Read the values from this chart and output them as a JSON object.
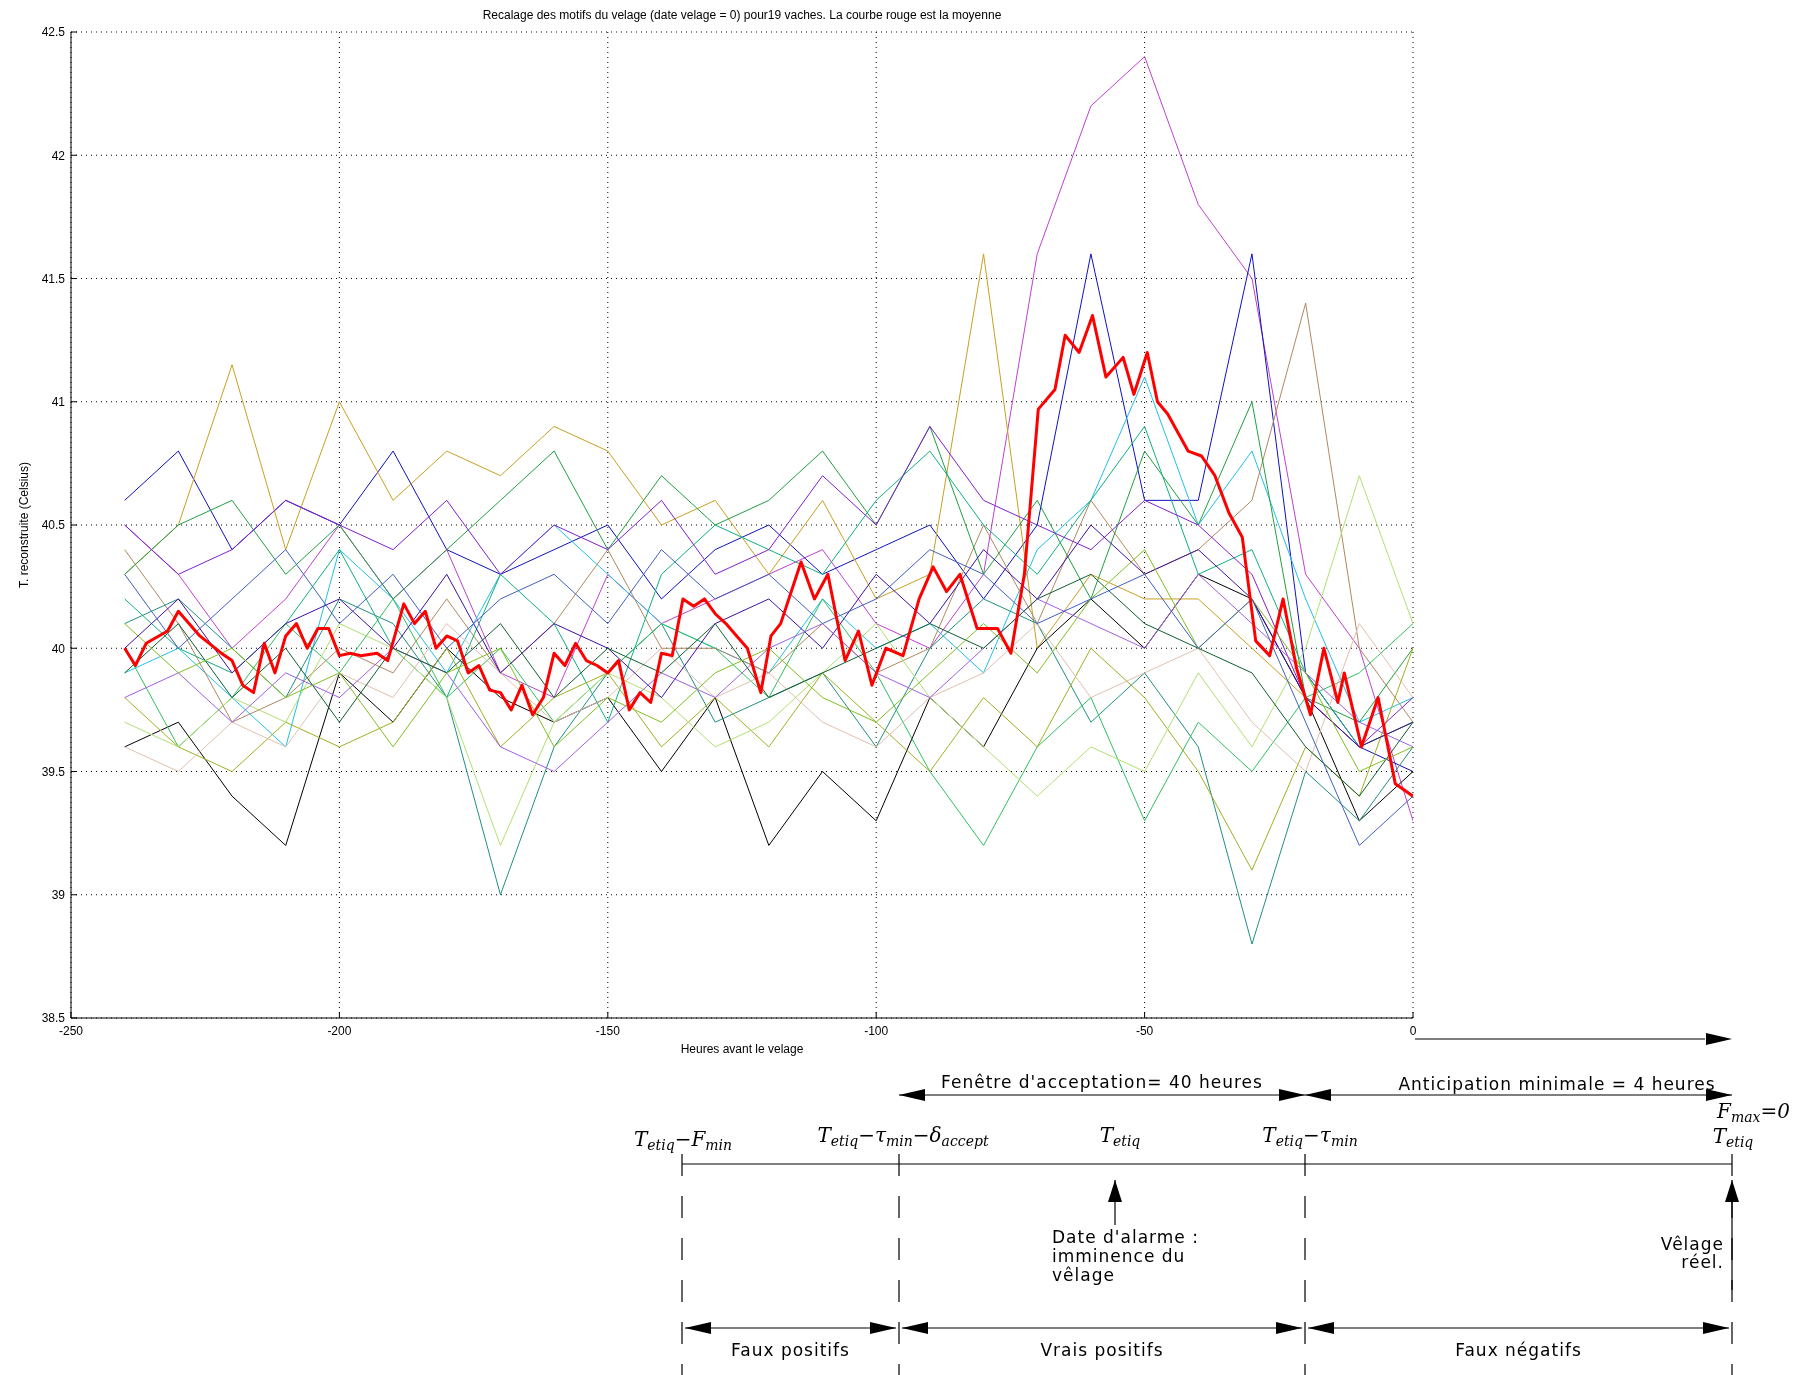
{
  "chart_data": {
    "type": "line",
    "title": "Recalage des motifs du velage (date velage = 0) pour19 vaches. La courbe rouge est la moyenne",
    "xlabel": "Heures avant le velage",
    "ylabel": "T. reconstruite (Celsius)",
    "xlim": [
      -250,
      0
    ],
    "xticks": [
      -250,
      -200,
      -150,
      -100,
      -50,
      0
    ],
    "ylim": [
      38.5,
      42.5
    ],
    "yticks": [
      38.5,
      39,
      39.5,
      40,
      40.5,
      41,
      41.5,
      42,
      42.5
    ],
    "grid": true,
    "marker": "none",
    "line_style": "solid",
    "x": [
      -240,
      -230,
      -220,
      -210,
      -200,
      -190,
      -180,
      -170,
      -160,
      -150,
      -140,
      -130,
      -120,
      -110,
      -100,
      -90,
      -80,
      -70,
      -60,
      -50,
      -40,
      -30,
      -20,
      -10,
      0
    ],
    "series": [
      {
        "color": "#c040d0",
        "values": [
          40.5,
          40.3,
          40.0,
          40.2,
          40.5,
          40.2,
          40.4,
          39.9,
          39.8,
          40.3,
          40.1,
          40.2,
          40.3,
          40.4,
          40.1,
          40.0,
          40.3,
          41.6,
          42.2,
          42.4,
          41.8,
          41.5,
          40.3,
          40.0,
          39.3
        ]
      },
      {
        "color": "#1010c0",
        "values": [
          40.6,
          40.8,
          40.4,
          40.6,
          40.5,
          40.8,
          40.4,
          40.3,
          40.4,
          40.5,
          40.2,
          40.4,
          40.5,
          40.3,
          40.4,
          40.5,
          40.2,
          40.5,
          41.6,
          40.6,
          40.6,
          41.6,
          39.9,
          39.6,
          39.5
        ]
      },
      {
        "color": "#c8a020",
        "values": [
          40.3,
          40.5,
          41.15,
          40.4,
          41.0,
          40.6,
          40.8,
          40.7,
          40.9,
          40.8,
          40.5,
          40.6,
          40.3,
          40.6,
          40.2,
          40.3,
          41.6,
          40.0,
          40.3,
          40.2,
          40.2,
          40.0,
          39.8,
          39.6,
          39.7
        ]
      },
      {
        "color": "#20c0e8",
        "values": [
          39.9,
          40.0,
          39.8,
          39.6,
          40.4,
          40.2,
          39.9,
          40.3,
          40.5,
          40.3,
          40.1,
          40.0,
          39.9,
          40.2,
          40.0,
          40.1,
          39.9,
          40.4,
          40.6,
          41.1,
          40.5,
          40.8,
          40.2,
          39.7,
          39.8
        ]
      },
      {
        "color": "#b08860",
        "values": [
          40.4,
          40.1,
          39.7,
          39.8,
          40.0,
          39.9,
          40.2,
          39.9,
          40.1,
          40.4,
          40.0,
          40.0,
          39.9,
          40.1,
          39.9,
          40.0,
          40.5,
          40.1,
          40.6,
          40.3,
          40.4,
          40.6,
          41.4,
          40.0,
          39.7
        ]
      },
      {
        "color": "#000000",
        "values": [
          39.6,
          39.7,
          39.4,
          39.2,
          39.9,
          39.7,
          40.0,
          39.8,
          39.7,
          39.8,
          39.5,
          39.8,
          39.2,
          39.5,
          39.3,
          39.8,
          39.6,
          40.0,
          40.2,
          40.0,
          40.3,
          40.2,
          39.8,
          39.3,
          39.5
        ]
      },
      {
        "color": "#209080",
        "values": [
          40.1,
          40.2,
          40.0,
          39.8,
          40.2,
          40.1,
          39.8,
          39.0,
          39.6,
          39.9,
          40.1,
          39.7,
          39.8,
          39.9,
          39.6,
          40.0,
          40.2,
          40.1,
          39.7,
          39.9,
          39.6,
          38.8,
          39.5,
          39.3,
          39.6
        ]
      },
      {
        "color": "#20a040",
        "values": [
          40.3,
          40.5,
          40.6,
          40.3,
          40.5,
          40.2,
          40.4,
          40.6,
          40.8,
          40.4,
          40.7,
          40.5,
          40.6,
          40.8,
          40.5,
          40.9,
          40.3,
          40.6,
          40.2,
          40.8,
          40.5,
          41.0,
          39.8,
          39.7,
          40.0
        ]
      },
      {
        "color": "#30c060",
        "values": [
          40.0,
          39.6,
          39.8,
          40.1,
          39.9,
          40.2,
          39.8,
          40.0,
          39.7,
          39.9,
          40.1,
          40.0,
          39.8,
          40.2,
          39.9,
          39.5,
          39.2,
          39.6,
          39.8,
          39.3,
          39.7,
          39.5,
          39.8,
          39.9,
          40.1
        ]
      },
      {
        "color": "#10b080",
        "values": [
          40.2,
          40.0,
          39.9,
          40.1,
          40.4,
          40.0,
          39.8,
          40.3,
          40.1,
          39.7,
          40.3,
          40.5,
          40.4,
          40.3,
          40.6,
          40.8,
          40.5,
          40.3,
          40.6,
          40.9,
          40.3,
          40.4,
          39.9,
          39.6,
          39.7
        ]
      },
      {
        "color": "#a0b020",
        "values": [
          39.8,
          39.6,
          39.5,
          39.7,
          39.6,
          39.7,
          40.0,
          39.6,
          39.8,
          39.9,
          39.6,
          39.8,
          39.6,
          39.9,
          39.7,
          39.5,
          39.8,
          39.6,
          40.0,
          39.8,
          39.5,
          39.1,
          39.6,
          39.4,
          40.0
        ]
      },
      {
        "color": "#b0e070",
        "values": [
          39.7,
          39.6,
          39.8,
          39.7,
          40.1,
          40.0,
          39.8,
          39.2,
          39.7,
          39.9,
          39.8,
          39.6,
          39.7,
          39.9,
          40.1,
          39.8,
          39.6,
          39.4,
          39.6,
          39.5,
          39.9,
          39.6,
          40.0,
          40.7,
          40.1
        ]
      },
      {
        "color": "#e0c0b0",
        "values": [
          39.6,
          39.5,
          39.7,
          39.6,
          39.9,
          39.8,
          40.1,
          39.9,
          39.7,
          39.8,
          40.0,
          39.8,
          39.9,
          39.7,
          39.6,
          39.8,
          39.9,
          40.1,
          39.8,
          39.9,
          40.0,
          39.7,
          39.5,
          40.1,
          39.8
        ]
      },
      {
        "color": "#8020d0",
        "values": [
          40.5,
          40.3,
          40.4,
          40.6,
          40.5,
          40.4,
          40.6,
          40.3,
          40.5,
          40.4,
          40.6,
          40.3,
          40.4,
          40.7,
          40.5,
          40.9,
          40.6,
          40.5,
          40.4,
          40.6,
          40.5,
          40.3,
          39.8,
          39.6,
          39.8
        ]
      },
      {
        "color": "#4010a0",
        "values": [
          40.0,
          40.2,
          39.9,
          40.1,
          40.2,
          40.0,
          40.3,
          39.9,
          40.1,
          40.0,
          39.8,
          40.1,
          40.2,
          40.0,
          40.3,
          40.1,
          40.4,
          40.2,
          40.5,
          40.3,
          40.4,
          40.2,
          39.8,
          39.6,
          39.7
        ]
      },
      {
        "color": "#a060e0",
        "values": [
          39.8,
          39.9,
          39.7,
          39.9,
          39.8,
          40.0,
          39.9,
          39.6,
          39.5,
          39.7,
          39.9,
          39.8,
          40.0,
          40.1,
          39.9,
          39.8,
          40.0,
          40.2,
          40.1,
          40.0,
          40.3,
          40.1,
          39.9,
          39.7,
          39.6
        ]
      },
      {
        "color": "#106030",
        "values": [
          39.9,
          40.1,
          39.8,
          40.0,
          39.7,
          40.0,
          39.9,
          40.1,
          39.8,
          40.0,
          39.9,
          40.1,
          39.8,
          39.9,
          40.0,
          40.1,
          40.0,
          40.2,
          40.3,
          40.1,
          40.0,
          39.9,
          39.6,
          39.4,
          39.7
        ]
      },
      {
        "color": "#80c020",
        "values": [
          40.1,
          39.9,
          40.0,
          39.8,
          39.9,
          39.6,
          39.9,
          40.0,
          39.6,
          39.8,
          39.7,
          39.9,
          40.0,
          39.8,
          39.7,
          39.9,
          40.1,
          39.9,
          40.2,
          40.4,
          40.0,
          40.2,
          39.9,
          39.5,
          39.6
        ]
      },
      {
        "color": "#4060c0",
        "values": [
          40.3,
          40.0,
          40.2,
          40.4,
          40.1,
          40.3,
          40.0,
          40.2,
          40.3,
          40.1,
          40.4,
          40.2,
          40.3,
          40.1,
          40.2,
          40.4,
          40.3,
          40.1,
          40.2,
          40.3,
          40.0,
          40.2,
          39.7,
          39.2,
          39.4
        ]
      },
      {
        "color": "#ff0000",
        "x": [
          -240,
          -238,
          -236,
          -232,
          -230,
          -226,
          -222,
          -220,
          -218,
          -216,
          -214,
          -212,
          -210,
          -208,
          -206,
          -204,
          -202,
          -200,
          -198,
          -196,
          -193,
          -191,
          -188,
          -186,
          -184,
          -182,
          -180,
          -178,
          -176,
          -174,
          -172,
          -170,
          -168,
          -166,
          -164,
          -162,
          -160,
          -158,
          -156,
          -154,
          -152,
          -150,
          -148,
          -146,
          -144,
          -142,
          -140,
          -138,
          -136,
          -134,
          -132,
          -130,
          -128,
          -126,
          -124,
          -121.5,
          -119.6,
          -117.8,
          -114,
          -111.5,
          -109,
          -105.8,
          -103.3,
          -100.8,
          -98.2,
          -95,
          -92,
          -89.4,
          -86.9,
          -84.4,
          -81.2,
          -77.4,
          -74.9,
          -72.4,
          -69.8,
          -66.7,
          -64.8,
          -62.2,
          -59.7,
          -57.2,
          -54,
          -52,
          -49.5,
          -47.6,
          -45.7,
          -41.9,
          -39.4,
          -36.9,
          -34.3,
          -31.8,
          -29.3,
          -26.7,
          -24.2,
          -21.7,
          -19.1,
          -16.6,
          -14,
          -12.8,
          -9.6,
          -6.5,
          -3.3,
          0
        ],
        "values": [
          40.0,
          39.93,
          40.02,
          40.07,
          40.15,
          40.05,
          39.98,
          39.95,
          39.85,
          39.82,
          40.02,
          39.9,
          40.05,
          40.1,
          40.0,
          40.08,
          40.08,
          39.97,
          39.98,
          39.97,
          39.98,
          39.95,
          40.18,
          40.1,
          40.15,
          40.0,
          40.05,
          40.03,
          39.9,
          39.93,
          39.83,
          39.82,
          39.75,
          39.85,
          39.73,
          39.8,
          39.98,
          39.93,
          40.02,
          39.95,
          39.93,
          39.9,
          39.95,
          39.75,
          39.82,
          39.78,
          39.98,
          39.97,
          40.2,
          40.17,
          40.2,
          40.14,
          40.1,
          40.05,
          40.0,
          39.82,
          40.05,
          40.1,
          40.35,
          40.2,
          40.3,
          39.95,
          40.07,
          39.85,
          40.0,
          39.97,
          40.2,
          40.33,
          40.23,
          40.3,
          40.08,
          40.08,
          39.98,
          40.3,
          40.97,
          41.05,
          41.27,
          41.2,
          41.35,
          41.1,
          41.18,
          41.03,
          41.2,
          41.0,
          40.95,
          40.8,
          40.78,
          40.7,
          40.55,
          40.45,
          40.03,
          39.97,
          40.2,
          39.92,
          39.73,
          40.0,
          39.78,
          39.9,
          39.6,
          39.8,
          39.45,
          39.4
        ]
      }
    ],
    "annotations": [
      "Fenêtre d'acceptation= 40 heures",
      "Anticipation minimale = 4 heures",
      "F$_{max}$=0",
      "T$_{etiq}$−F$_{min}$",
      "T$_{etiq}$−τ$_{min}$−δ$_{accept}$",
      "T$_{etiq}$",
      "T$_{etiq}$−τ$_{min}$",
      "T$_{etiq}$",
      "Date d'alarme : imminence du vêlage",
      "Vêlage réel.",
      "Faux positifs",
      "Vrais positifs",
      "Faux négatifs"
    ]
  }
}
